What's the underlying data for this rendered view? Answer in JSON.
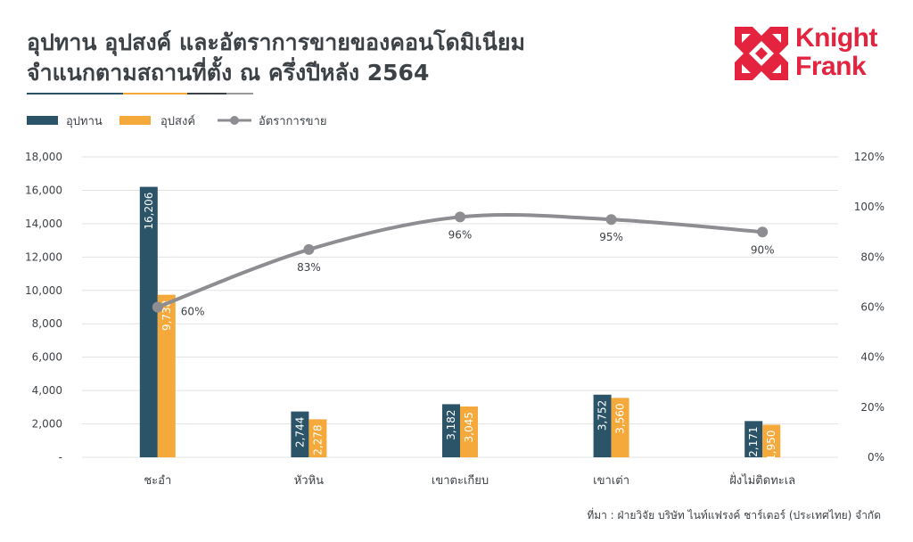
{
  "title_lines": [
    "อุปทาน อุปสงค์ และอัตราการขายของคอนโดมิเนียม",
    "จำแนกตามสถานที่ตั้ง ณ ครึ่งปีหลัง 2564"
  ],
  "logo": {
    "line1": "Knight",
    "line2": "Frank",
    "color": "#e4233f"
  },
  "source": "ที่มา : ฝ่ายวิจัย บริษัท ไนท์แฟรงค์ ชาร์เตอร์ (ประเทศไทย) จำกัด",
  "colors": {
    "supply": "#2b5468",
    "demand": "#f6a93b",
    "rate": "#8d8d92",
    "text": "#3d4247",
    "grid": "#e3e3e3"
  },
  "chart_data": {
    "type": "bar",
    "title": "",
    "categories": [
      "ชะอำ",
      "หัวหิน",
      "เขาตะเกียบ",
      "เขาเต่า",
      "ฝั่งไม่ติดทะเล"
    ],
    "series": [
      {
        "name": "อุปทาน",
        "type": "bar",
        "axis": "left",
        "values": [
          16206,
          2744,
          3182,
          3752,
          2171
        ],
        "labels": [
          "16,206",
          "2,744",
          "3,182",
          "3,752",
          "2,171"
        ]
      },
      {
        "name": "อุปสงค์",
        "type": "bar",
        "axis": "left",
        "values": [
          9738,
          2278,
          3045,
          3560,
          1950
        ],
        "labels": [
          "9,738",
          "2,278",
          "3,045",
          "3,560",
          "1,950"
        ]
      },
      {
        "name": "อัตราการขาย",
        "type": "line",
        "axis": "right",
        "values": [
          60,
          83,
          96,
          95,
          90
        ],
        "labels": [
          "60%",
          "83%",
          "96%",
          "95%",
          "90%"
        ]
      }
    ],
    "ylim": [
      0,
      18000
    ],
    "y2lim": [
      0,
      120
    ],
    "y_ticks": [
      "-",
      "2,000",
      "4,000",
      "6,000",
      "8,000",
      "10,000",
      "12,000",
      "14,000",
      "16,000",
      "18,000"
    ],
    "y2_ticks": [
      "0%",
      "20%",
      "40%",
      "60%",
      "80%",
      "100%",
      "120%"
    ],
    "legend_position": "top-left",
    "grid": true
  }
}
